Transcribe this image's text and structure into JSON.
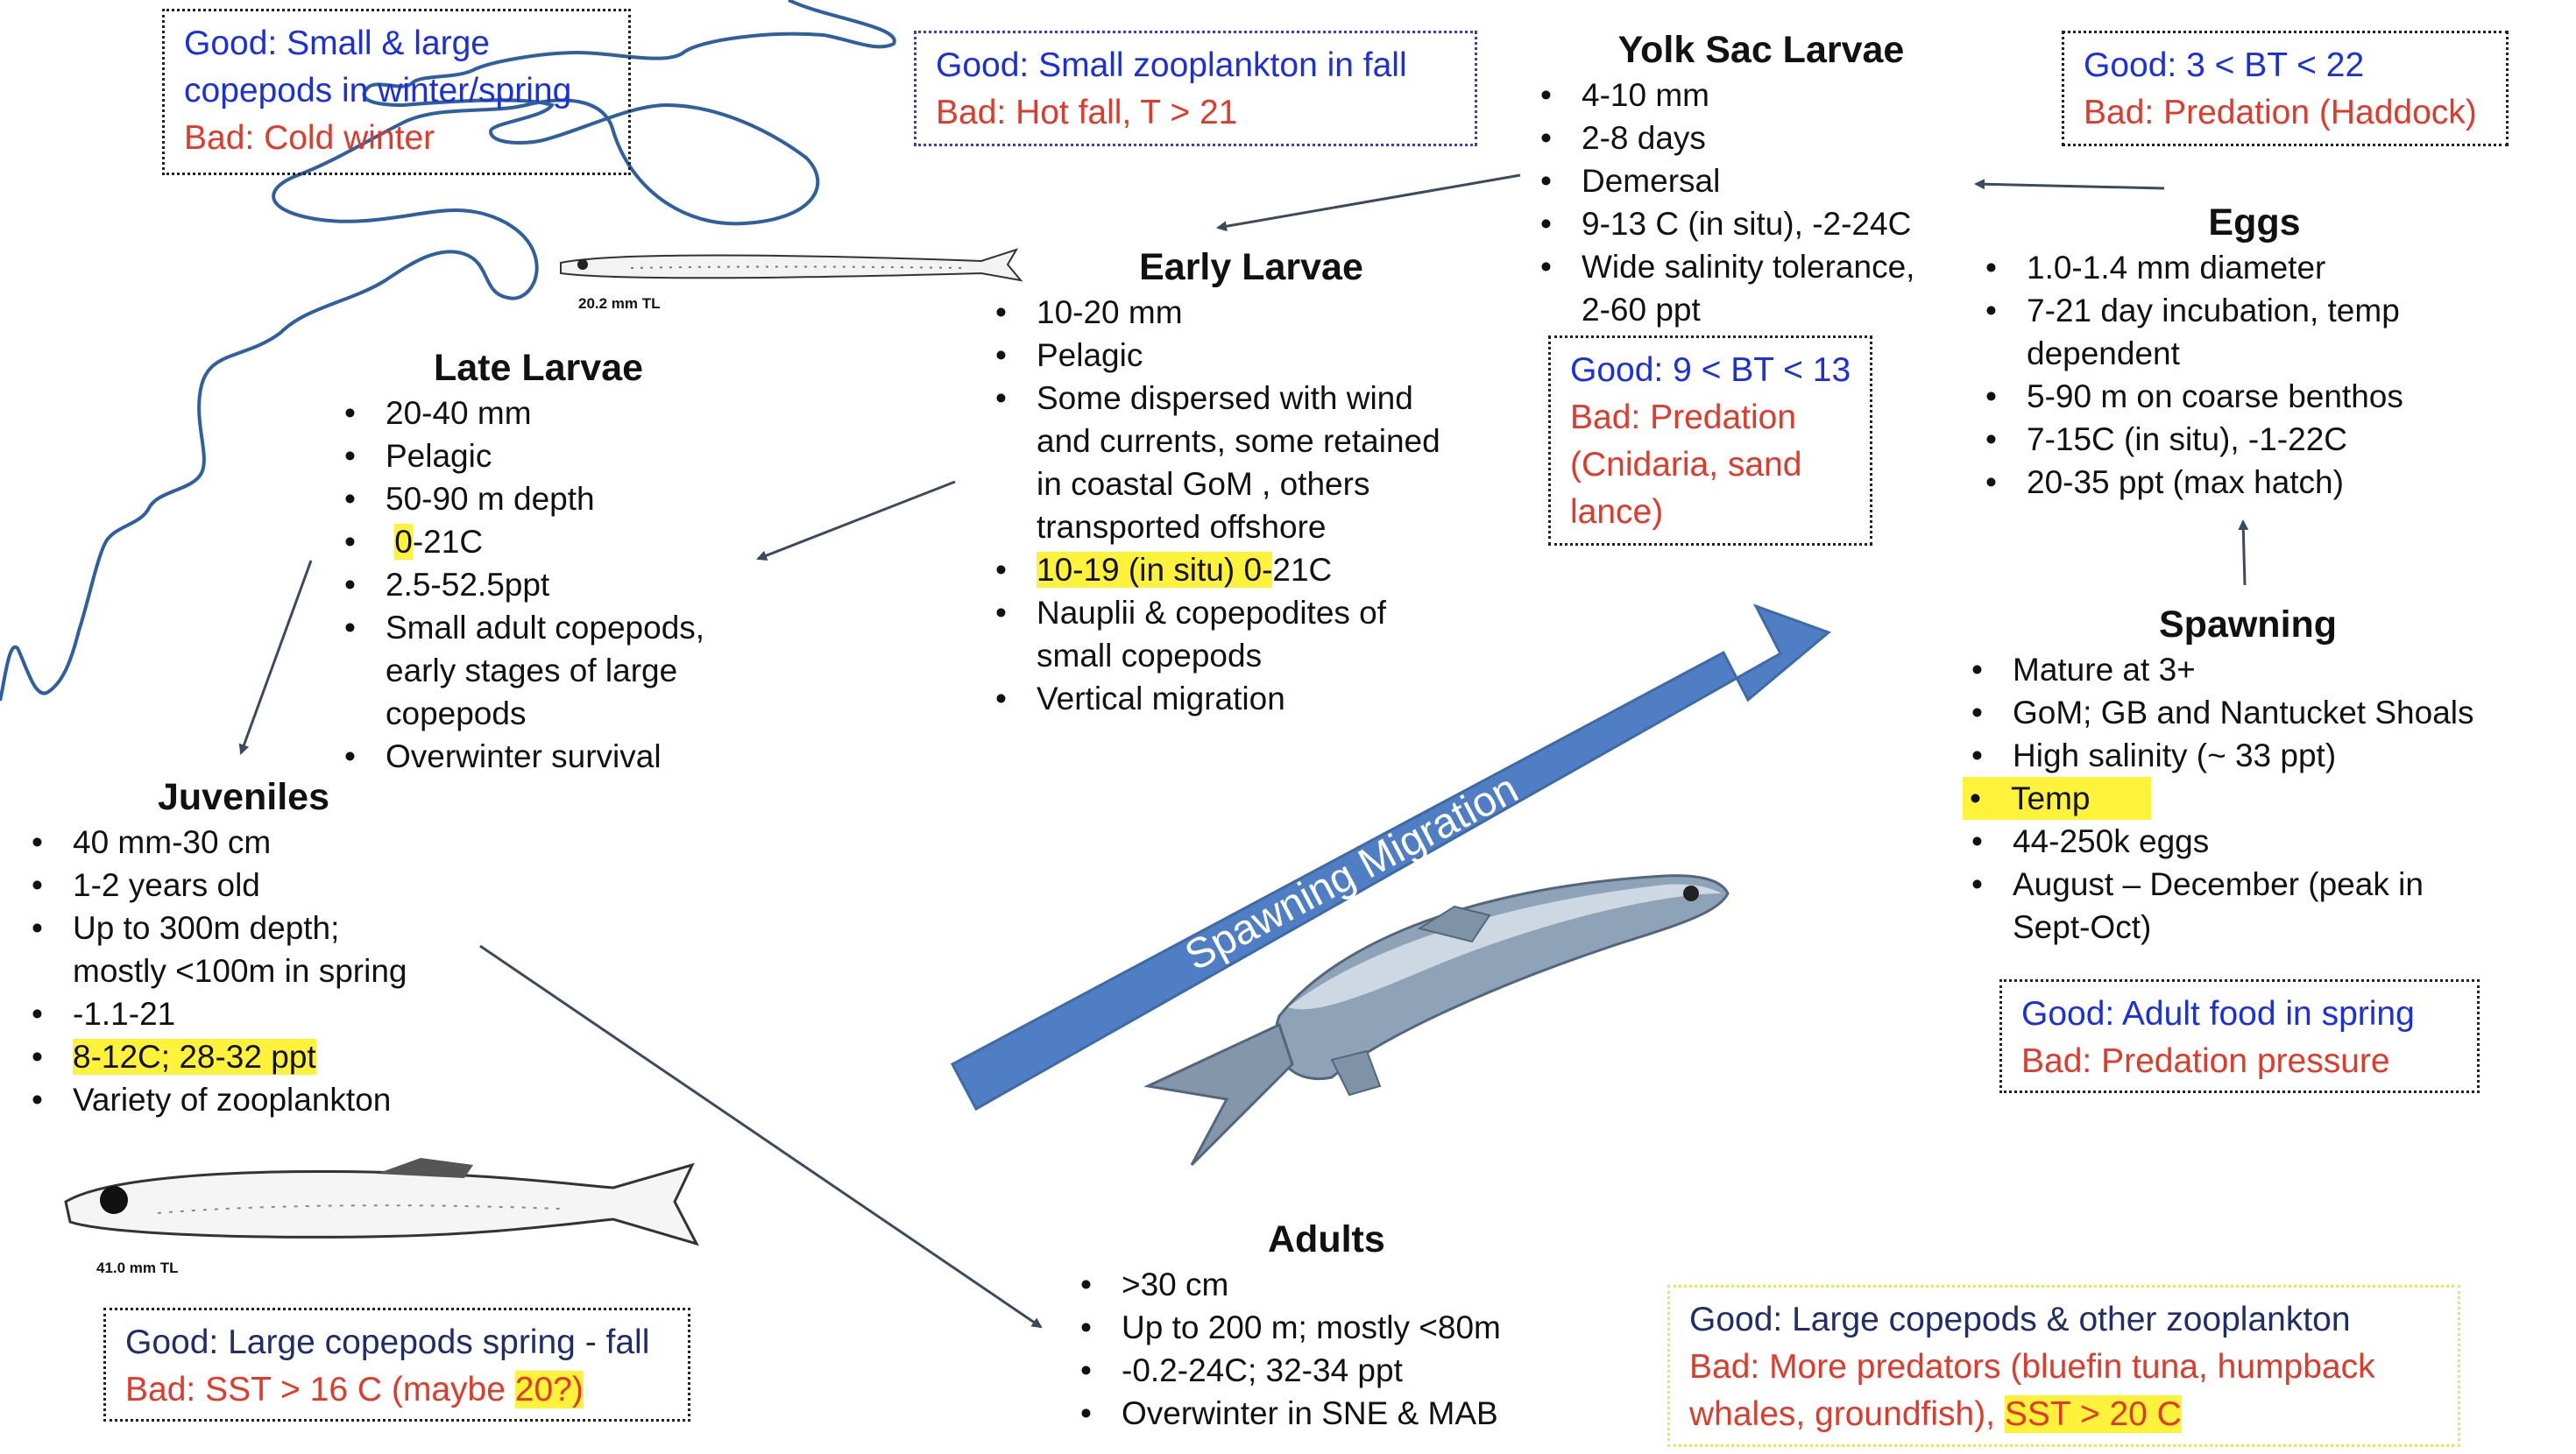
{
  "migration_label": "Spawning Migration",
  "fish_labels": {
    "early_larva": "20.2 mm TL",
    "juvenile": "41.0 mm TL"
  },
  "stages": {
    "yolk_sac": {
      "title": "Yolk Sac Larvae",
      "items": [
        "4-10 mm",
        "2-8 days",
        "Demersal",
        "9-13 C (in situ), -2-24C",
        "Wide salinity tolerance,",
        "2-60 ppt"
      ]
    },
    "eggs": {
      "title": "Eggs",
      "items": [
        "1.0-1.4 mm diameter",
        "7-21 day incubation, temp",
        "dependent",
        "5-90 m on coarse benthos",
        "7-15C (in situ), -1-22C",
        "20-35 ppt (max hatch)"
      ]
    },
    "early_larvae": {
      "title": "Early Larvae",
      "items": [
        "10-20 mm",
        "Pelagic",
        "Some dispersed with wind",
        "and currents, some retained",
        "in coastal GoM , others",
        "transported offshore",
        "",
        "Nauplii & copepodites of",
        "small copepods",
        "Vertical migration"
      ],
      "temp_highlight": "10-19 (in situ) 0-",
      "temp_rest": "21C"
    },
    "late_larvae": {
      "title": "Late Larvae",
      "items": [
        "20-40 mm",
        "Pelagic",
        "50-90 m depth",
        "",
        "2.5-52.5ppt",
        "Small adult copepods,",
        "early stages of large",
        "copepods",
        "Overwinter survival"
      ],
      "temp_highlight": "0",
      "temp_rest": "-21C"
    },
    "juveniles": {
      "title": "Juveniles",
      "items": [
        "40 mm-30 cm",
        "1-2 years old",
        "Up to 300m depth;",
        "mostly <100m in spring",
        "-1.1-21",
        "8-12C; 28-32 ppt",
        "Variety of zooplankton"
      ]
    },
    "spawning": {
      "title": "Spawning",
      "items": [
        "Mature at 3+",
        "GoM; GB and Nantucket Shoals",
        "High salinity (~ 33 ppt)",
        "Temp",
        "44-250k eggs",
        "August – December (peak in",
        "Sept-Oct)"
      ]
    },
    "adults": {
      "title": "Adults",
      "items": [
        ">30 cm",
        "Up to 200 m; mostly <80m",
        "-0.2-24C; 32-34 ppt",
        "Overwinter in SNE & MAB"
      ]
    }
  },
  "condition_boxes": {
    "top_left": {
      "good": [
        "Good: Small & large",
        "copepods in winter/spring"
      ],
      "bad": [
        "Bad: Cold winter"
      ]
    },
    "top_center": {
      "good": [
        "Good: Small zooplankton  in fall"
      ],
      "bad": [
        "Bad: Hot fall, T > 21"
      ]
    },
    "top_right": {
      "good": [
        "Good: 3 < BT < 22"
      ],
      "bad": [
        "Bad: Predation (Haddock)"
      ]
    },
    "yolk": {
      "good": [
        "Good: 9 < BT < 13"
      ],
      "bad": [
        "Bad: Predation",
        "(Cnidaria, sand",
        "lance)"
      ]
    },
    "spawn": {
      "good": [
        "Good: Adult food in spring"
      ],
      "bad": [
        "Bad: Predation pressure"
      ]
    },
    "juvenile": {
      "good": [
        "Good: Large copepods spring - fall"
      ],
      "bad_pre": "Bad: SST > 16 C (maybe ",
      "bad_hl": "20?)"
    },
    "adult": {
      "good": [
        "Good: Large copepods & other zooplankton"
      ],
      "bad": [
        "Bad: More predators (bluefin tuna, humpback",
        "whales, groundfish),"
      ],
      "bad_hl": "SST > 20 C"
    }
  },
  "colors": {
    "good": "#1a2fe0",
    "bad": "#e03a2a",
    "coast": "#2e5f9e",
    "arrow": "#4f7ec4",
    "highlight": "#fff23a"
  }
}
